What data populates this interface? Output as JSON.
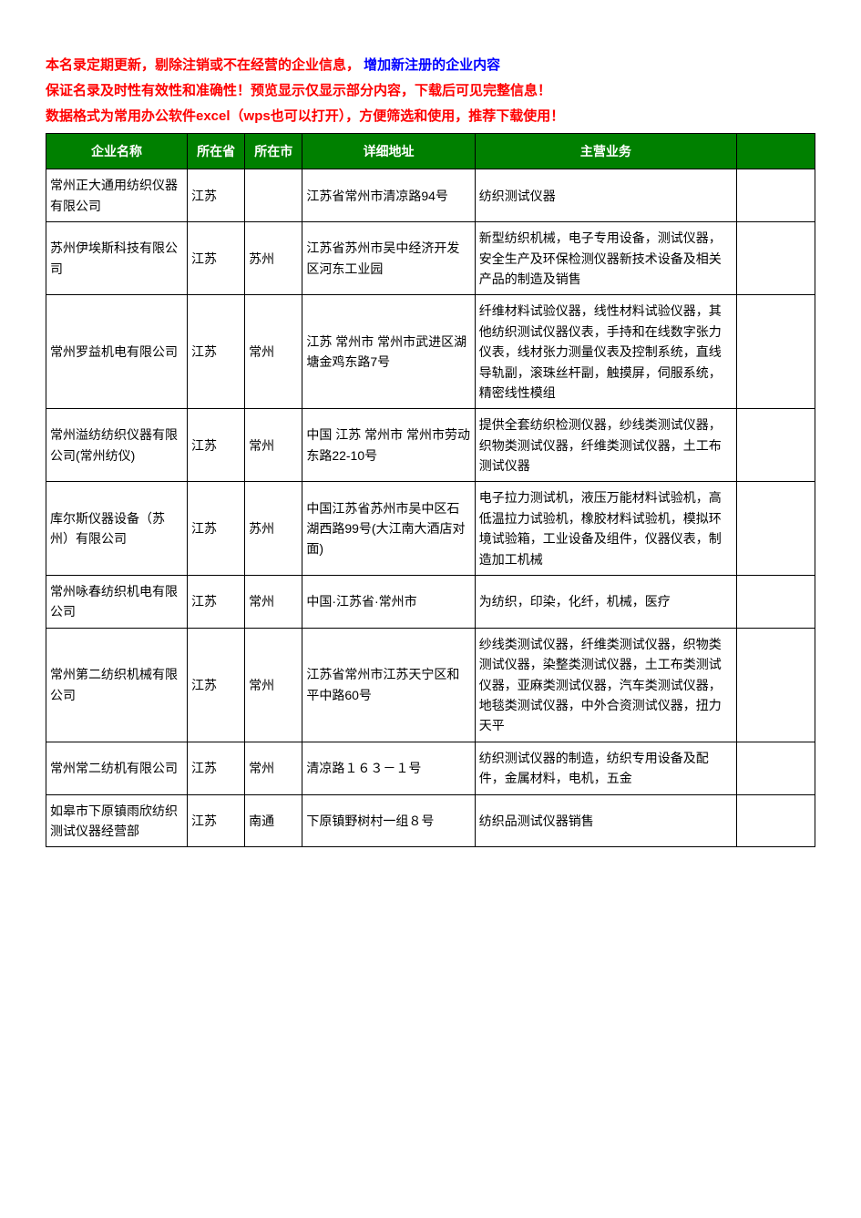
{
  "intro": {
    "line1_part1": "本名录定期更新，剔除注销或不在经营的企业信息，",
    "line1_part2": "  增加新注册的企业内容",
    "line2": "保证名录及时性有效性和准确性！预览显示仅显示部分内容，下载后可见完整信息！",
    "line3": "数据格式为常用办公软件excel（wps也可以打开），方便筛选和使用，推荐下载使用！"
  },
  "table": {
    "columns": [
      "企业名称",
      "所在省",
      "所在市",
      "详细地址",
      "主营业务",
      ""
    ],
    "rows": [
      {
        "name": "常州正大通用纺织仪器有限公司",
        "province": "江苏",
        "city": "",
        "address": "江苏省常州市清凉路94号",
        "business": "纺织测试仪器"
      },
      {
        "name": "苏州伊埃斯科技有限公司",
        "province": "江苏",
        "city": "苏州",
        "address": "江苏省苏州市吴中经济开发区河东工业园",
        "business": "新型纺织机械，电子专用设备，测试仪器，安全生产及环保检测仪器新技术设备及相关产品的制造及销售"
      },
      {
        "name": "常州罗益机电有限公司",
        "province": "江苏",
        "city": "常州",
        "address": "江苏 常州市 常州市武进区湖塘金鸡东路7号",
        "business": "纤维材料试验仪器，线性材料试验仪器，其他纺织测试仪器仪表，手持和在线数字张力仪表，线材张力测量仪表及控制系统，直线导轨副，滚珠丝杆副，触摸屏，伺服系统，精密线性模组"
      },
      {
        "name": "常州溢纺纺织仪器有限公司(常州纺仪)",
        "province": "江苏",
        "city": "常州",
        "address": "中国 江苏 常州市 常州市劳动东路22-10号",
        "business": "提供全套纺织检测仪器，纱线类测试仪器，织物类测试仪器，纤维类测试仪器，土工布测试仪器"
      },
      {
        "name": "库尔斯仪器设备（苏州）有限公司",
        "province": "江苏",
        "city": "苏州",
        "address": "中国江苏省苏州市吴中区石湖西路99号(大江南大酒店对面)",
        "business": "电子拉力测试机，液压万能材料试验机，高低温拉力试验机，橡胶材料试验机，模拟环境试验箱，工业设备及组件，仪器仪表，制造加工机械"
      },
      {
        "name": "常州咏春纺织机电有限公司",
        "province": "江苏",
        "city": "常州",
        "address": "中国·江苏省·常州市",
        "business": "为纺织，印染，化纤，机械，医疗"
      },
      {
        "name": "常州第二纺织机械有限公司",
        "province": "江苏",
        "city": "常州",
        "address": "江苏省常州市江苏天宁区和平中路60号",
        "business": "纱线类测试仪器，纤维类测试仪器，织物类测试仪器，染整类测试仪器，土工布类测试仪器，亚麻类测试仪器，汽车类测试仪器，地毯类测试仪器，中外合资测试仪器，扭力天平"
      },
      {
        "name": "常州常二纺机有限公司",
        "province": "江苏",
        "city": "常州",
        "address": "清凉路１６３－１号",
        "business": "纺织测试仪器的制造，纺织专用设备及配件，金属材料，电机，五金"
      },
      {
        "name": "如皋市下原镇雨欣纺织测试仪器经营部",
        "province": "江苏",
        "city": "南通",
        "address": "下原镇野树村一组８号",
        "business": "纺织品测试仪器销售"
      }
    ]
  },
  "styling": {
    "header_bg_color": "#008000",
    "header_text_color": "#ffffff",
    "red_color": "#ff0000",
    "blue_color": "#0000ff",
    "border_color": "#000000",
    "body_bg": "#ffffff"
  }
}
